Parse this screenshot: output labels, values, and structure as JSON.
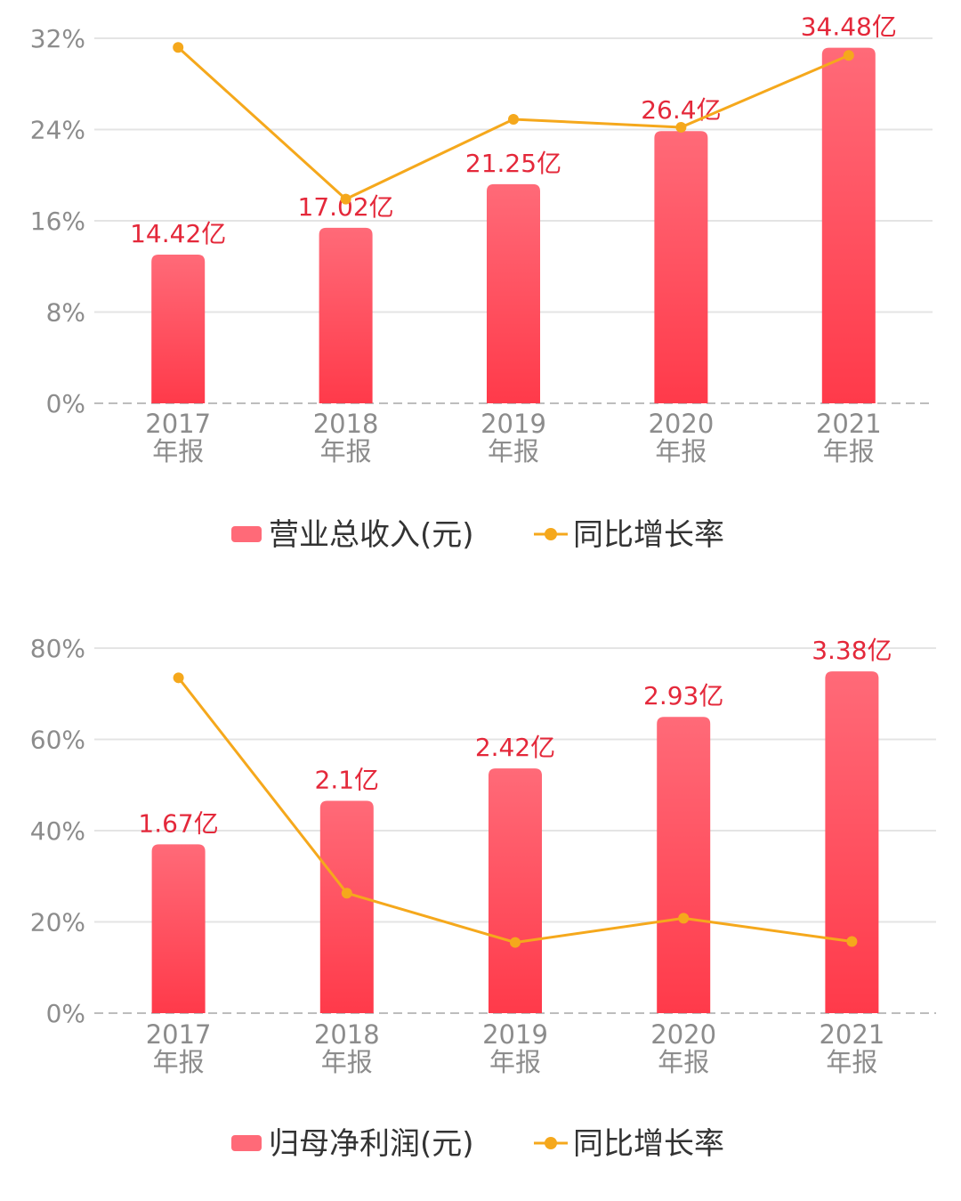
{
  "colors": {
    "bar_top": "#ff6a78",
    "bar_bottom": "#ff3a4a",
    "line": "#f5a81c",
    "value_label": "#e4283a",
    "axis_text": "#8c8c8c",
    "grid": "#e4e4e4"
  },
  "chart_data": [
    {
      "type": "bar",
      "categories": [
        "2017\n年报",
        "2018\n年报",
        "2019\n年报",
        "2020\n年报",
        "2021\n年报"
      ],
      "yticks": [
        "0%",
        "8%",
        "16%",
        "24%",
        "32%"
      ],
      "ylim": [
        0,
        32
      ],
      "series": [
        {
          "name": "营业总收入(元)",
          "type": "bar",
          "values": [
            14.42,
            17.02,
            21.25,
            26.4,
            34.48
          ],
          "labels": [
            "14.42亿",
            "17.02亿",
            "21.25亿",
            "26.4亿",
            "34.48亿"
          ]
        },
        {
          "name": "同比增长率",
          "type": "line",
          "values": [
            31.2,
            17.9,
            24.9,
            24.2,
            30.5
          ]
        }
      ],
      "bar_scale_max": 35.4,
      "legend_position": "bottom",
      "grid": true
    },
    {
      "type": "bar",
      "categories": [
        "2017\n年报",
        "2018\n年报",
        "2019\n年报",
        "2020\n年报",
        "2021\n年报"
      ],
      "yticks": [
        "0%",
        "20%",
        "40%",
        "60%",
        "80%"
      ],
      "ylim": [
        0,
        80
      ],
      "series": [
        {
          "name": "归母净利润(元)",
          "type": "bar",
          "values": [
            1.67,
            2.1,
            2.42,
            2.93,
            3.38
          ],
          "labels": [
            "1.67亿",
            "2.1亿",
            "2.42亿",
            "2.93亿",
            "3.38亿"
          ]
        },
        {
          "name": "同比增长率",
          "type": "line",
          "values": [
            73.5,
            26.3,
            15.5,
            20.8,
            15.7
          ]
        }
      ],
      "bar_scale_max": 3.61,
      "legend_position": "bottom",
      "grid": true
    }
  ]
}
